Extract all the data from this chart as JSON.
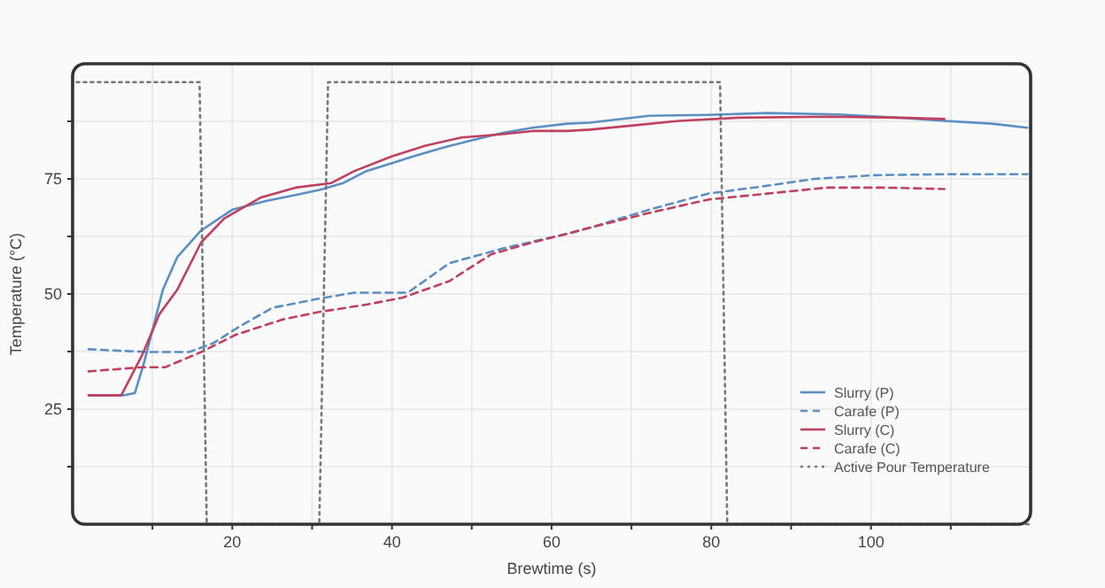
{
  "chart_data": {
    "type": "line",
    "xlabel": "Brewtime (s)",
    "ylabel": "Temperature (°C)",
    "xlim": [
      0,
      120
    ],
    "ylim": [
      0,
      100
    ],
    "xticks": [
      {
        "value": 10,
        "label": null
      },
      20,
      {
        "value": 30,
        "label": null
      },
      40,
      {
        "value": 50,
        "label": null
      },
      60,
      {
        "value": 70,
        "label": null
      },
      80,
      {
        "value": 90,
        "label": null
      },
      100,
      {
        "value": 110,
        "label": null
      }
    ],
    "yticks": [
      {
        "value": 12.5,
        "label": null
      },
      25,
      {
        "value": 37.5,
        "label": null
      },
      50,
      {
        "value": 62.5,
        "label": null
      },
      75,
      {
        "value": 87.5,
        "label": null
      }
    ],
    "grid": true,
    "legend": "bottom right",
    "series": [
      {
        "name": "Slurry (P)",
        "color": "#5b8fc4",
        "line_style": "solid",
        "x": [
          2,
          6.4,
          7.8,
          9,
          11.3,
          13.1,
          16.1,
          20,
          24.2,
          27.9,
          30.9,
          33.9,
          36.8,
          40,
          42.7,
          46.4,
          50.1,
          53.9,
          57.6,
          62,
          64.8,
          72.2,
          79.6,
          87,
          95.9,
          103.3,
          109.2,
          115.1,
          119.6
        ],
        "values": [
          28,
          28,
          28.5,
          35.4,
          50.9,
          58,
          63.8,
          68.3,
          70.2,
          71.5,
          72.6,
          74.1,
          76.7,
          78.4,
          79.9,
          81.8,
          83.4,
          85,
          86.1,
          87,
          87.2,
          88.7,
          88.9,
          89.3,
          89,
          88.3,
          87.6,
          87,
          86.1
        ]
      },
      {
        "name": "Carafe (P)",
        "color": "#5b8fc4",
        "line_style": "dashed",
        "x": [
          2,
          9.4,
          14.6,
          17.6,
          20.5,
          25,
          30.9,
          35.3,
          42,
          47.2,
          53.9,
          62,
          64.8,
          72.2,
          79.6,
          87,
          92.9,
          100.4,
          109.2,
          119.6
        ],
        "values": [
          38,
          37.4,
          37.4,
          39.3,
          42.5,
          47,
          49,
          50.3,
          50.3,
          56.7,
          59.9,
          63.1,
          64.4,
          68.3,
          71.8,
          73.5,
          75,
          75.8,
          76,
          76
        ]
      },
      {
        "name": "Slurry (C)",
        "color": "#c0405f",
        "line_style": "solid",
        "x": [
          2,
          6.1,
          8.7,
          10.9,
          13.1,
          16.1,
          19,
          23.5,
          27.9,
          32.4,
          35.3,
          40,
          44.2,
          48.7,
          53.9,
          57.6,
          62,
          64.8,
          70.8,
          76,
          83.5,
          94.7,
          103.3,
          109.2
        ],
        "values": [
          28,
          28,
          36.7,
          45.7,
          50.9,
          61.2,
          66.4,
          70.9,
          73.1,
          74.1,
          76.7,
          79.9,
          82.2,
          84,
          84.7,
          85.4,
          85.4,
          85.7,
          86.7,
          87.6,
          88.3,
          88.5,
          88.3,
          88
        ]
      },
      {
        "name": "Carafe (C)",
        "color": "#c0405f",
        "line_style": "dashed",
        "x": [
          2,
          8.7,
          11.6,
          16.1,
          20.5,
          26.4,
          30.9,
          36.8,
          41.3,
          47.2,
          52.4,
          57.6,
          62,
          64.8,
          72.2,
          79.6,
          87,
          94.4,
          101.8,
          109.2
        ],
        "values": [
          33.2,
          34.1,
          34.1,
          37.4,
          41.2,
          44.5,
          46.1,
          47.7,
          49.2,
          52.8,
          58.6,
          61.2,
          63.1,
          64.4,
          67.6,
          70.5,
          71.8,
          73.1,
          73.1,
          72.8
        ]
      },
      {
        "name": "Active Pour Temperature",
        "color": "#777777",
        "line_style": "dotted",
        "x": [
          0.5,
          15.9,
          16.8,
          30.9,
          32,
          81.1,
          82,
          120
        ],
        "values": [
          96,
          96,
          0,
          0,
          96,
          96,
          0,
          0
        ]
      }
    ]
  }
}
